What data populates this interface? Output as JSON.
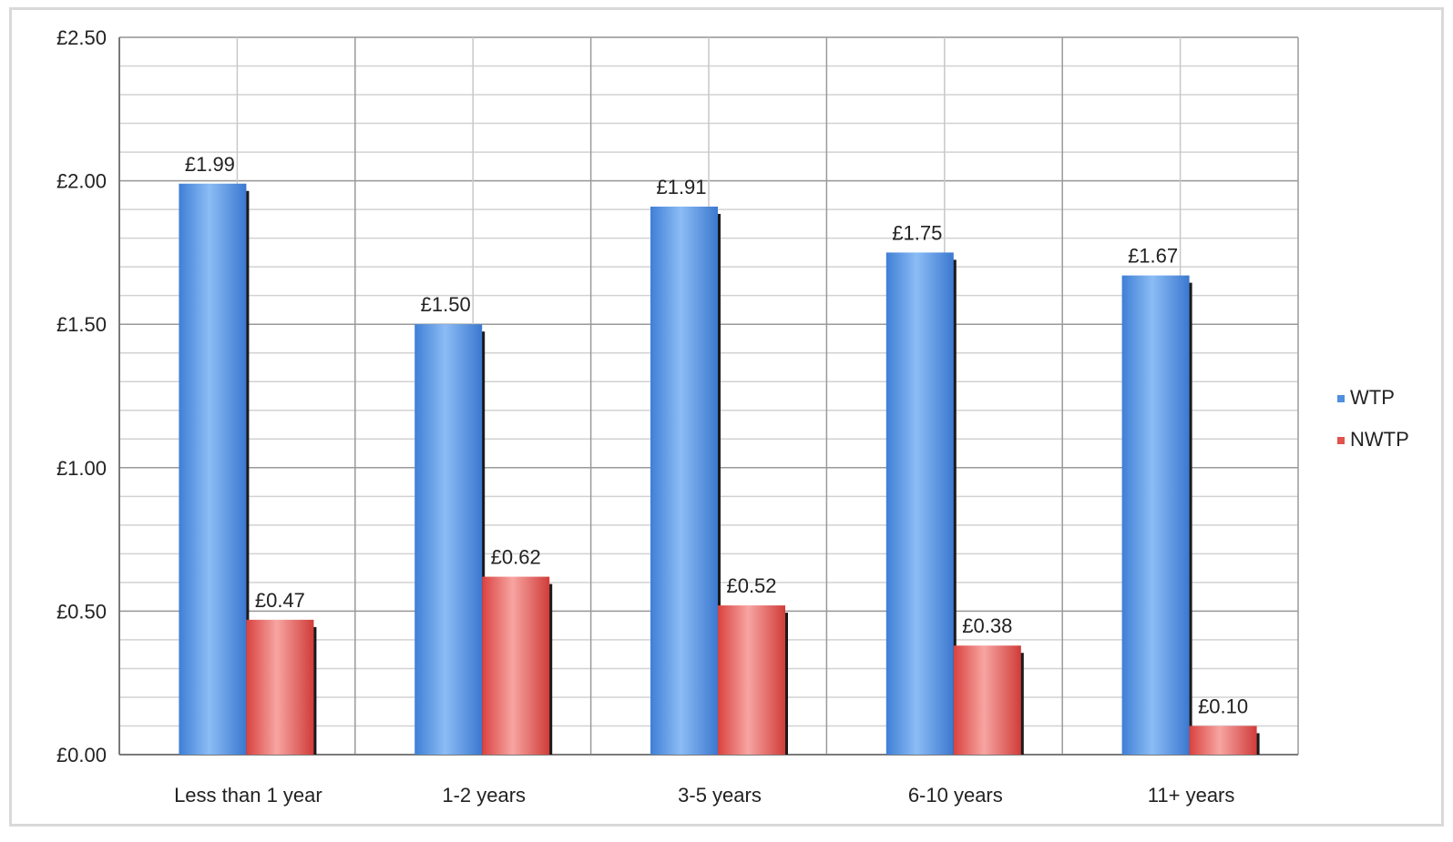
{
  "chart_data": {
    "type": "bar",
    "categories": [
      "Less than 1 year",
      "1-2 years",
      "3-5 years",
      "6-10 years",
      "11+ years"
    ],
    "series": [
      {
        "name": "WTP",
        "values": [
          1.99,
          1.5,
          1.91,
          1.75,
          1.67
        ],
        "labels": [
          "£1.99",
          "£1.50",
          "£1.91",
          "£1.75",
          "£1.67"
        ],
        "color": "#4f8fde"
      },
      {
        "name": "NWTP",
        "values": [
          0.47,
          0.62,
          0.52,
          0.38,
          0.1
        ],
        "labels": [
          "£0.47",
          "£0.62",
          "£0.52",
          "£0.38",
          "£0.10"
        ],
        "color": "#e0534f"
      }
    ],
    "yticks": [
      0,
      0.5,
      1.0,
      1.5,
      2.0,
      2.5
    ],
    "ytick_labels": [
      "£0.00",
      "£0.50",
      "£1.00",
      "£1.50",
      "£2.00",
      "£2.50"
    ],
    "ylim": [
      0,
      2.5
    ],
    "grid": true,
    "legend": "right",
    "title": "",
    "xlabel": "",
    "ylabel": ""
  }
}
